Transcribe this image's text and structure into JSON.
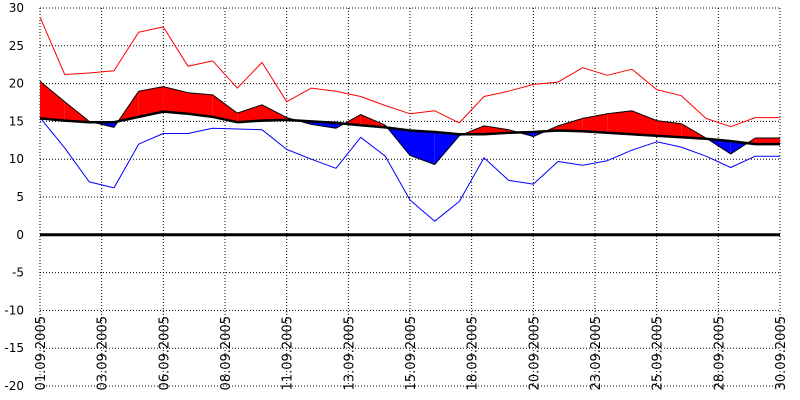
{
  "chart_data": {
    "type": "area",
    "title": "",
    "xlabel": "",
    "ylabel": "",
    "ylim": [
      -20,
      30
    ],
    "y_ticks": [
      30,
      25,
      20,
      15,
      10,
      5,
      0,
      -5,
      -10,
      -15,
      -20
    ],
    "grid": true,
    "x_labels": [
      "01.09.2005",
      "03.09.2005",
      "06.09.2005",
      "08.09.2005",
      "11.09.2005",
      "13.09.2005",
      "15.09.2005",
      "18.09.2005",
      "20.09.2005",
      "23.09.2005",
      "25.09.2005",
      "28.09.2005",
      "30.09.2005"
    ],
    "x_label_days": [
      1,
      3.5,
      6,
      8.5,
      11,
      13.5,
      16,
      18.5,
      21,
      23.5,
      26,
      28.5,
      31
    ],
    "days": [
      1,
      2,
      3,
      4,
      5,
      6,
      7,
      8,
      9,
      10,
      11,
      12,
      13,
      14,
      15,
      16,
      17,
      18,
      19,
      20,
      21,
      22,
      23,
      24,
      25,
      26,
      27,
      28,
      29,
      30,
      31
    ],
    "series": [
      {
        "values": [
          28.8,
          21.2,
          21.4,
          21.7,
          26.8,
          27.5,
          22.3,
          23.0,
          19.4,
          22.8,
          17.6,
          19.4,
          19.0,
          18.3,
          17.1,
          16.0,
          16.4,
          14.8,
          18.3,
          19.0,
          19.9,
          20.2,
          22.1,
          21.1,
          21.9,
          19.2,
          18.4,
          15.4,
          14.3,
          15.5,
          15.5
        ],
        "color": "#ff0000"
      },
      {
        "values": [
          15.5,
          11.5,
          7.0,
          6.2,
          12.0,
          13.4,
          13.4,
          14.1,
          14.0,
          13.9,
          11.3,
          10.0,
          8.8,
          12.9,
          10.4,
          4.6,
          1.8,
          4.4,
          10.2,
          7.2,
          6.7,
          9.7,
          9.2,
          9.8,
          11.2,
          12.3,
          11.6,
          10.4,
          8.9,
          10.4,
          10.4
        ],
        "color": "#0000ff"
      },
      {
        "values": [
          20.3,
          17.6,
          15.0,
          14.2,
          19.0,
          19.6,
          18.8,
          18.5,
          16.1,
          17.2,
          15.5,
          14.6,
          14.1,
          15.9,
          14.5,
          10.5,
          9.3,
          13.1,
          14.4,
          13.9,
          13.0,
          14.4,
          15.4,
          16.0,
          16.4,
          15.1,
          14.7,
          12.8,
          10.7,
          12.8,
          12.8
        ],
        "color": "#000000"
      },
      {
        "values": [
          15.4,
          15.1,
          14.9,
          14.9,
          15.6,
          16.3,
          16.0,
          15.6,
          14.9,
          15.1,
          15.2,
          15.0,
          14.8,
          14.5,
          14.2,
          13.8,
          13.6,
          13.3,
          13.3,
          13.5,
          13.6,
          13.8,
          13.7,
          13.5,
          13.3,
          13.1,
          12.9,
          12.7,
          12.4,
          12.0,
          12.0
        ],
        "color": "#000000"
      }
    ],
    "colors": {
      "above": "#ff0000",
      "below": "#0000ff",
      "grid": "#000000",
      "zero_line": "#000000"
    }
  }
}
